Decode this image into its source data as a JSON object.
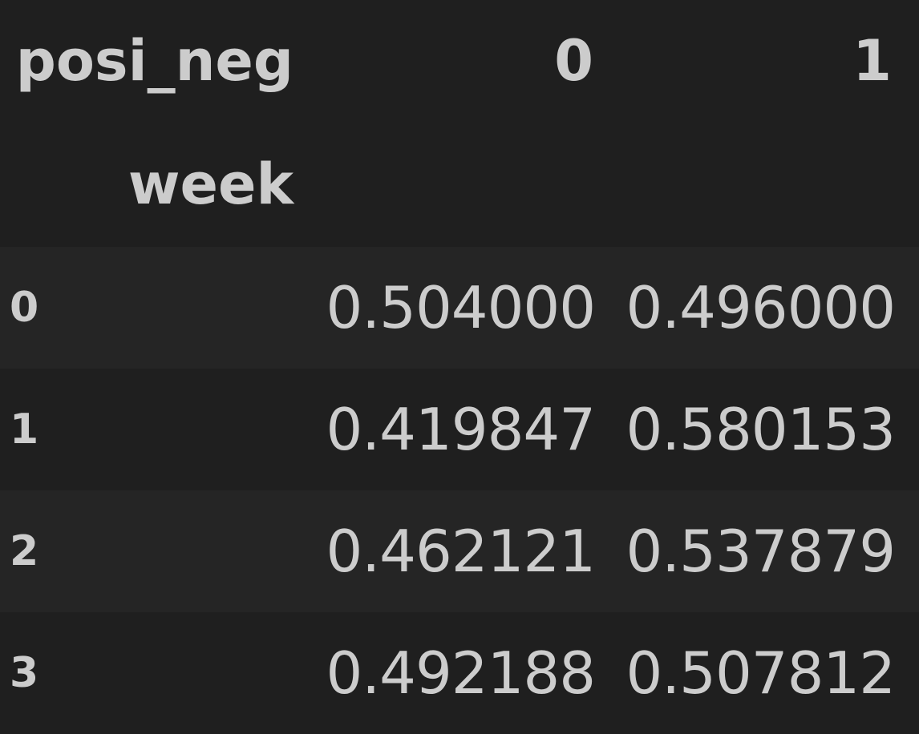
{
  "table": {
    "columns_name": "posi_neg",
    "columns": [
      "0",
      "1"
    ],
    "index_name": "week",
    "rows": [
      {
        "index": "0",
        "values": [
          "0.504000",
          "0.496000"
        ]
      },
      {
        "index": "1",
        "values": [
          "0.419847",
          "0.580153"
        ]
      },
      {
        "index": "2",
        "values": [
          "0.462121",
          "0.537879"
        ]
      },
      {
        "index": "3",
        "values": [
          "0.492188",
          "0.507812"
        ]
      }
    ]
  },
  "colors": {
    "background": "#1f1f1f",
    "row_alt": "#252525",
    "text": "#cccccc"
  }
}
